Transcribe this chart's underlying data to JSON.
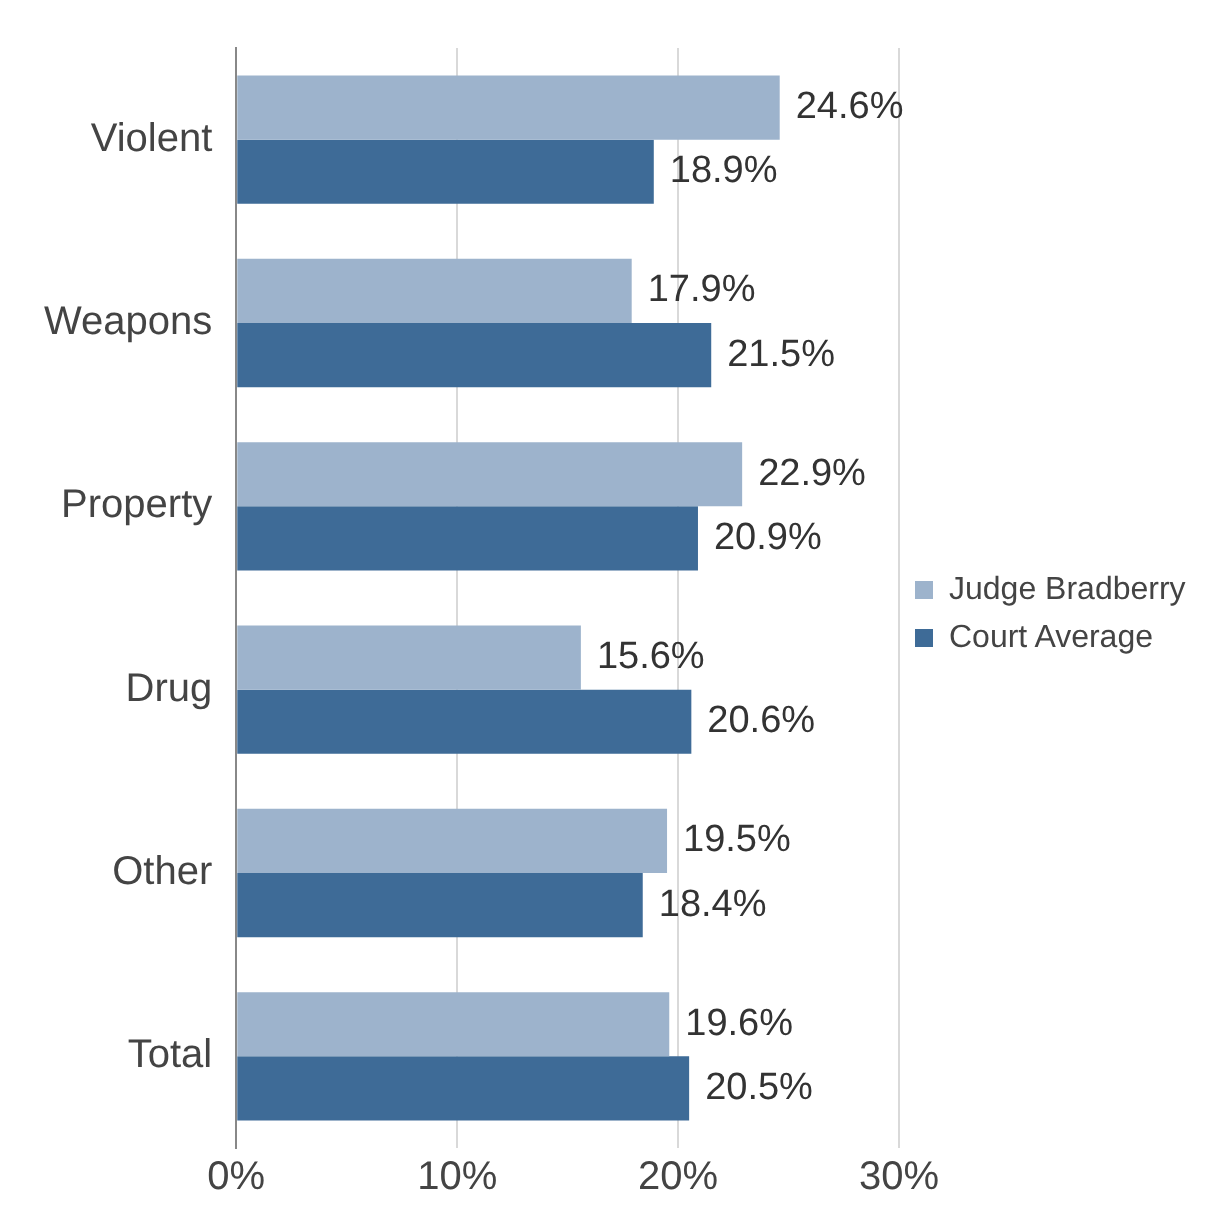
{
  "chart_data": {
    "type": "bar",
    "orientation": "horizontal",
    "categories": [
      "Violent",
      "Weapons",
      "Property",
      "Drug",
      "Other",
      "Total"
    ],
    "series": [
      {
        "name": "Judge Bradberry",
        "color": "#9db3cc",
        "values": [
          24.6,
          17.9,
          22.9,
          15.6,
          19.5,
          19.6
        ],
        "value_labels": [
          "24.6%",
          "17.9%",
          "22.9%",
          "15.6%",
          "19.5%",
          "19.6%"
        ]
      },
      {
        "name": "Court Average",
        "color": "#3e6b97",
        "values": [
          18.9,
          21.5,
          20.9,
          20.6,
          18.4,
          20.5
        ],
        "value_labels": [
          "18.9%",
          "21.5%",
          "20.9%",
          "20.6%",
          "18.4%",
          "20.5%"
        ]
      }
    ],
    "xlim": [
      0,
      30
    ],
    "xticks": [
      {
        "value": 0,
        "label": "0%"
      },
      {
        "value": 10,
        "label": "10%"
      },
      {
        "value": 20,
        "label": "20%"
      },
      {
        "value": 30,
        "label": "30%"
      }
    ],
    "grid": "x",
    "legend": "right"
  }
}
